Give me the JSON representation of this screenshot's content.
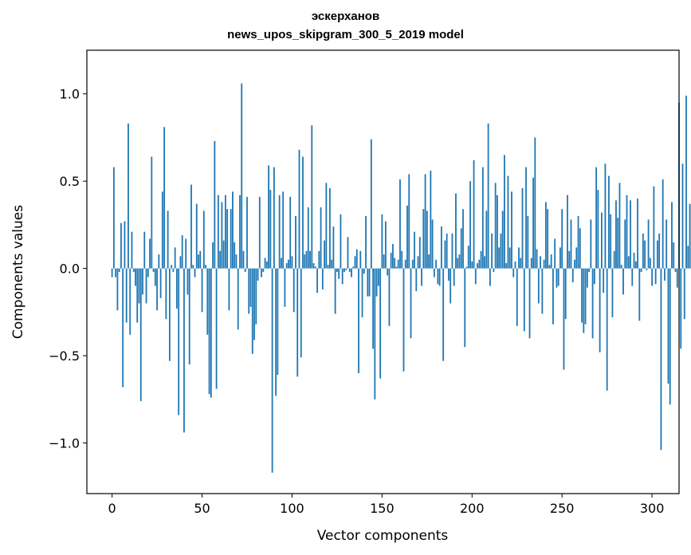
{
  "chart_data": {
    "type": "bar",
    "title_line1": "эскерханов",
    "title_line2": "news_upos_skipgram_300_5_2019 model",
    "xlabel": "Vector components",
    "ylabel": "Components values",
    "xlim": [
      -14,
      315
    ],
    "ylim": [
      -1.29,
      1.25
    ],
    "xticks": [
      0,
      50,
      100,
      150,
      200,
      250,
      300
    ],
    "yticks": [
      -1.0,
      -0.5,
      0.0,
      0.5,
      1.0
    ],
    "ytick_labels": [
      "−1.0",
      "−0.5",
      "0.0",
      "0.5",
      "1.0"
    ],
    "bar_color": "#1f77b4",
    "values": [
      -0.05,
      0.58,
      -0.05,
      -0.24,
      -0.02,
      0.26,
      -0.68,
      0.27,
      -0.31,
      0.83,
      -0.38,
      0.21,
      -0.02,
      -0.1,
      -0.31,
      -0.2,
      -0.76,
      -0.15,
      0.21,
      -0.2,
      -0.05,
      0.17,
      0.64,
      -0.02,
      -0.1,
      -0.24,
      0.08,
      -0.17,
      0.44,
      0.81,
      -0.29,
      0.33,
      -0.53,
      0.02,
      -0.02,
      0.12,
      -0.23,
      -0.84,
      0.07,
      0.19,
      -0.94,
      0.17,
      -0.15,
      -0.55,
      0.48,
      0.02,
      -0.05,
      0.37,
      0.08,
      0.1,
      -0.25,
      0.33,
      0.02,
      -0.38,
      -0.72,
      -0.74,
      0.15,
      0.73,
      -0.69,
      0.42,
      0.1,
      0.38,
      0.16,
      0.42,
      0.34,
      -0.24,
      0.34,
      0.44,
      0.15,
      0.08,
      -0.35,
      0.42,
      1.06,
      0.1,
      -0.02,
      0.41,
      -0.26,
      -0.22,
      -0.49,
      -0.41,
      -0.32,
      -0.07,
      0.41,
      -0.05,
      -0.02,
      0.06,
      0.04,
      0.59,
      0.45,
      -1.17,
      0.58,
      -0.73,
      -0.61,
      0.42,
      0.06,
      0.44,
      -0.22,
      0.03,
      0.05,
      0.41,
      0.07,
      -0.25,
      0.3,
      -0.62,
      0.68,
      -0.51,
      0.64,
      0.08,
      0.1,
      0.35,
      0.1,
      0.82,
      0.03,
      0.01,
      -0.14,
      0.1,
      0.35,
      -0.12,
      0.16,
      0.49,
      0.02,
      0.46,
      0.05,
      0.24,
      -0.26,
      -0.02,
      -0.06,
      0.31,
      -0.09,
      -0.02,
      -0.01,
      0.18,
      -0.02,
      -0.05,
      0.01,
      0.07,
      0.11,
      -0.6,
      0.1,
      -0.28,
      -0.03,
      0.3,
      -0.16,
      -0.16,
      0.74,
      -0.46,
      -0.75,
      -0.16,
      -0.1,
      -0.63,
      0.31,
      0.08,
      0.27,
      -0.04,
      -0.33,
      0.09,
      0.14,
      0.06,
      0.01,
      0.05,
      0.51,
      0.1,
      -0.59,
      0.05,
      0.36,
      0.54,
      -0.4,
      0.05,
      0.21,
      -0.13,
      0.07,
      0.18,
      -0.1,
      0.34,
      0.54,
      0.33,
      0.08,
      0.56,
      0.28,
      -0.05,
      0.05,
      -0.09,
      -0.1,
      0.24,
      -0.53,
      0.16,
      0.2,
      -0.07,
      -0.2,
      0.2,
      -0.1,
      0.43,
      0.06,
      0.08,
      0.23,
      0.34,
      -0.45,
      0.01,
      0.13,
      0.5,
      0.04,
      0.62,
      -0.09,
      0.03,
      0.05,
      0.1,
      0.58,
      0.07,
      0.33,
      0.83,
      -0.1,
      0.2,
      -0.02,
      0.49,
      0.42,
      0.12,
      0.2,
      0.33,
      0.65,
      0.03,
      0.53,
      0.12,
      0.44,
      -0.05,
      0.04,
      -0.33,
      0.12,
      0.06,
      0.46,
      -0.36,
      0.58,
      0.3,
      -0.4,
      0.06,
      0.52,
      0.75,
      0.11,
      -0.2,
      0.07,
      -0.26,
      0.05,
      0.38,
      0.34,
      0.02,
      0.08,
      -0.32,
      0.17,
      -0.11,
      -0.1,
      0.12,
      0.34,
      -0.58,
      -0.29,
      0.42,
      0.1,
      0.28,
      -0.08,
      0.05,
      0.12,
      0.3,
      0.23,
      -0.31,
      -0.37,
      -0.32,
      -0.11,
      -0.02,
      0.28,
      -0.4,
      -0.09,
      0.58,
      0.45,
      -0.48,
      0.32,
      -0.14,
      0.6,
      -0.7,
      0.53,
      0.31,
      -0.28,
      0.1,
      0.39,
      0.29,
      0.49,
      0.02,
      -0.15,
      0.28,
      0.42,
      0.07,
      0.39,
      -0.1,
      0.09,
      0.04,
      0.4,
      -0.3,
      -0.02,
      0.2,
      0.16,
      -0.01,
      0.28,
      0.06,
      -0.1,
      0.47,
      -0.09,
      0.16,
      0.2,
      -1.04,
      0.51,
      -0.07,
      0.28,
      -0.66,
      -0.78,
      0.38,
      0.15,
      -0.02,
      -0.11,
      0.95,
      -0.46,
      0.6,
      -0.29,
      0.99,
      0.13,
      0.37,
      0.36
    ]
  }
}
